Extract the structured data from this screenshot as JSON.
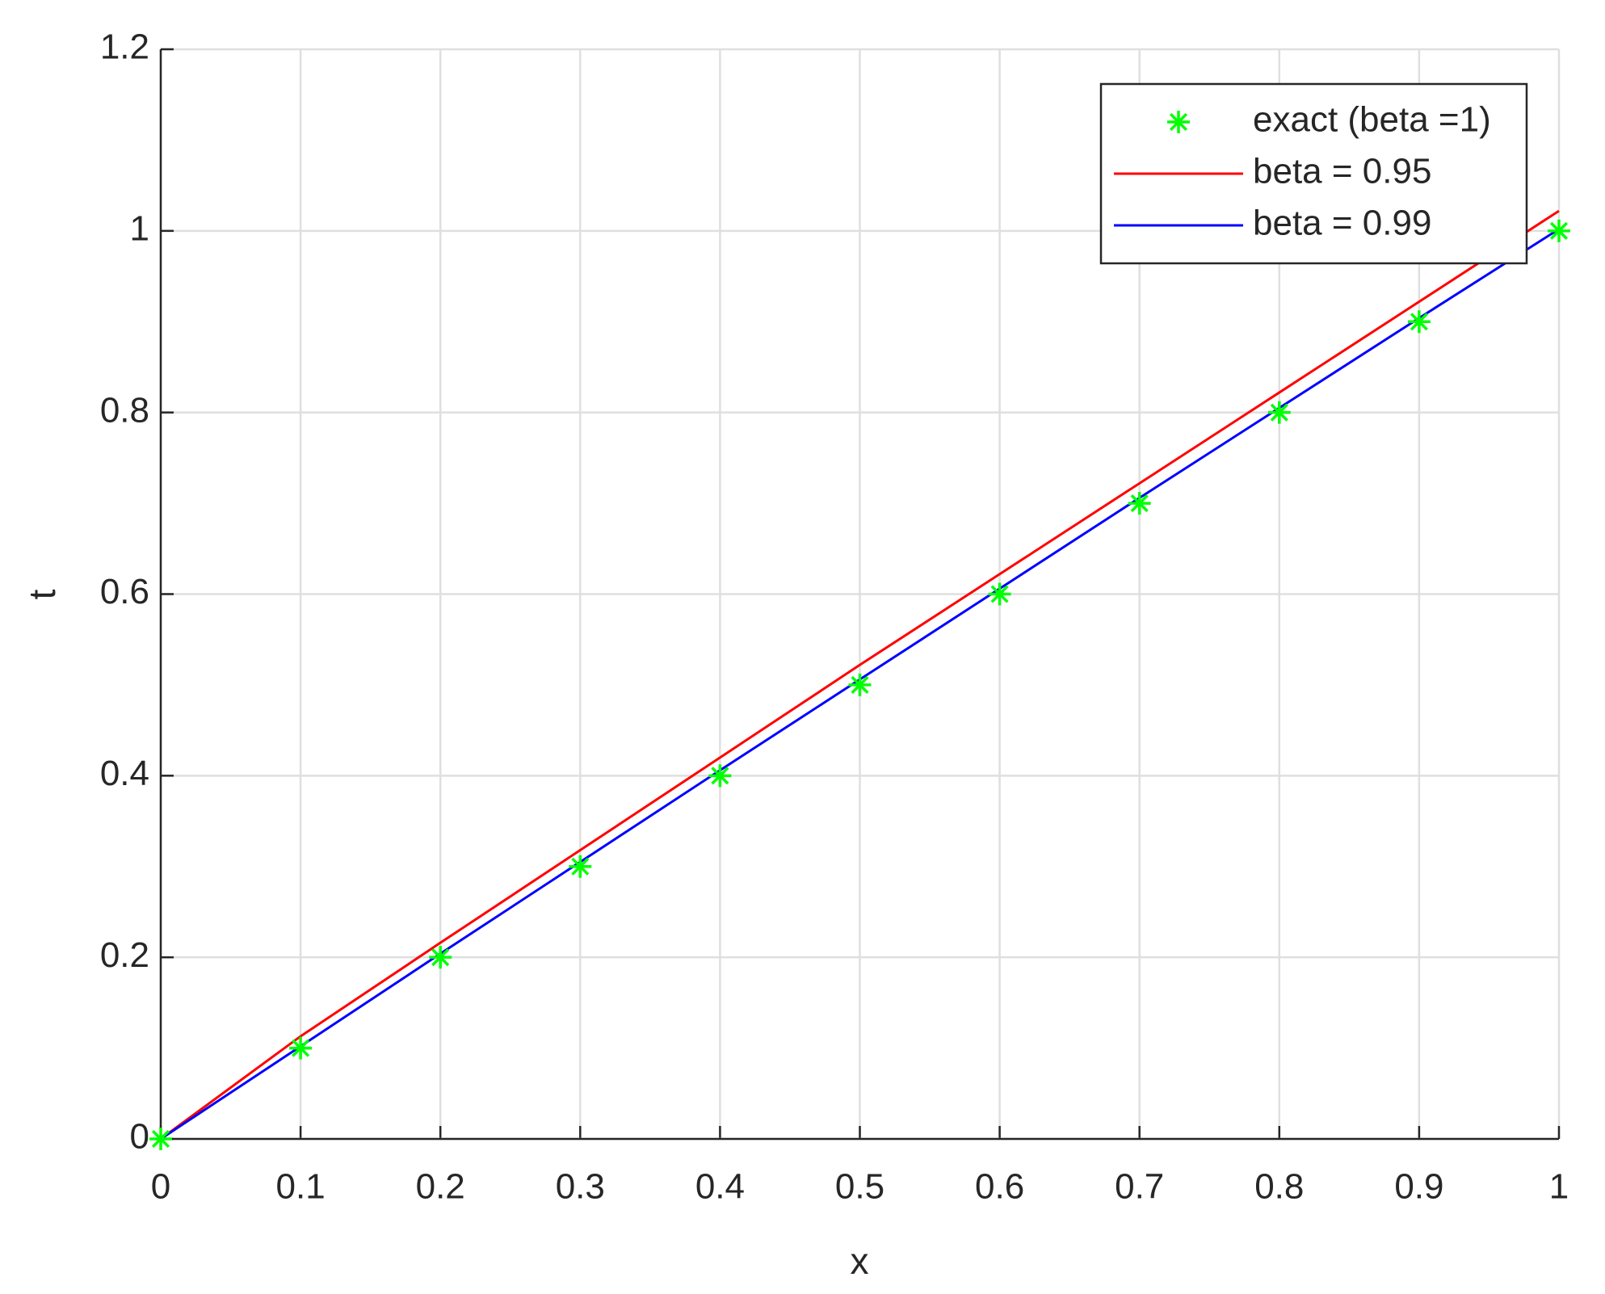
{
  "chart_data": {
    "type": "line",
    "x_label": "x",
    "y_label": "t",
    "x": [
      0,
      0.1,
      0.2,
      0.3,
      0.4,
      0.5,
      0.6,
      0.7,
      0.8,
      0.9,
      1
    ],
    "series": [
      {
        "name": "exact (beta =1)",
        "color": "#00ff00",
        "mode": "markers",
        "values": [
          0,
          0.1,
          0.2,
          0.3,
          0.4,
          0.5,
          0.6,
          0.7,
          0.8,
          0.9,
          1
        ]
      },
      {
        "name": "beta = 0.95",
        "color": "#ff0000",
        "mode": "line",
        "values": [
          0,
          0.113,
          0.216,
          0.318,
          0.42,
          0.522,
          0.622,
          0.722,
          0.822,
          0.922,
          1.022
        ]
      },
      {
        "name": "beta = 0.99",
        "color": "#0000ff",
        "mode": "line",
        "values": [
          0,
          0.102,
          0.204,
          0.305,
          0.406,
          0.506,
          0.606,
          0.706,
          0.805,
          0.904,
          1.002
        ]
      }
    ],
    "xlim": [
      0,
      1
    ],
    "xticks": [
      0,
      0.1,
      0.2,
      0.3,
      0.4,
      0.5,
      0.6,
      0.7,
      0.8,
      0.9,
      1
    ],
    "ylim": [
      0,
      1.2
    ],
    "yticks": [
      0,
      0.2,
      0.4,
      0.6,
      0.8,
      1,
      1.2
    ],
    "grid": true,
    "legend": "northeast"
  }
}
